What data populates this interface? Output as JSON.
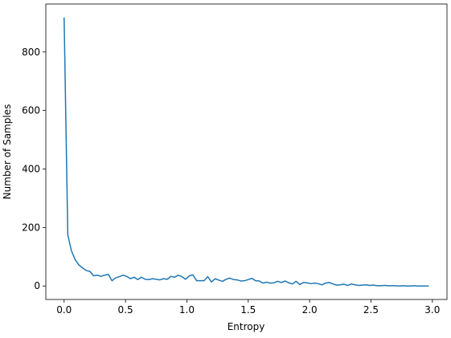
{
  "chart_data": {
    "type": "line",
    "x_label": "Entropy",
    "y_label": "Number of Samples",
    "x": [
      0,
      0.03,
      0.06,
      0.09,
      0.12,
      0.15,
      0.18,
      0.21,
      0.24,
      0.27,
      0.3,
      0.33,
      0.36,
      0.39,
      0.42,
      0.45,
      0.48,
      0.51,
      0.54,
      0.57,
      0.6,
      0.63,
      0.66,
      0.69,
      0.72,
      0.75,
      0.78,
      0.81,
      0.84,
      0.87,
      0.9,
      0.93,
      0.96,
      0.99,
      1.02,
      1.05,
      1.08,
      1.11,
      1.14,
      1.17,
      1.2,
      1.23,
      1.26,
      1.29,
      1.32,
      1.35,
      1.38,
      1.41,
      1.44,
      1.47,
      1.5,
      1.53,
      1.56,
      1.59,
      1.62,
      1.65,
      1.68,
      1.71,
      1.74,
      1.77,
      1.8,
      1.83,
      1.86,
      1.89,
      1.92,
      1.95,
      1.98,
      2.01,
      2.04,
      2.07,
      2.1,
      2.13,
      2.16,
      2.19,
      2.22,
      2.25,
      2.28,
      2.31,
      2.34,
      2.37,
      2.4,
      2.43,
      2.46,
      2.49,
      2.52,
      2.55,
      2.58,
      2.61,
      2.64,
      2.67,
      2.7,
      2.73,
      2.76,
      2.79,
      2.82,
      2.85,
      2.88,
      2.91,
      2.94,
      2.97
    ],
    "series": [
      {
        "name": "samples",
        "color": "#1f77b4",
        "values": [
          918,
          175,
          120,
          90,
          72,
          62,
          53,
          50,
          35,
          37,
          33,
          37,
          40,
          18,
          28,
          32,
          37,
          33,
          25,
          30,
          22,
          30,
          23,
          22,
          25,
          23,
          21,
          25,
          23,
          33,
          30,
          37,
          32,
          23,
          35,
          38,
          18,
          18,
          18,
          32,
          14,
          25,
          20,
          16,
          23,
          27,
          22,
          21,
          17,
          18,
          22,
          26,
          18,
          17,
          10,
          13,
          10,
          11,
          16,
          12,
          17,
          11,
          7,
          16,
          5,
          12,
          11,
          8,
          10,
          8,
          4,
          10,
          12,
          7,
          3,
          4,
          6,
          2,
          7,
          4,
          2,
          3,
          4,
          2,
          3,
          1,
          1,
          2,
          1,
          1,
          1,
          0,
          1,
          0,
          0,
          1,
          0,
          0,
          0,
          0
        ]
      }
    ],
    "xlim": [
      -0.149,
      3.119
    ],
    "ylim": [
      -46,
      964
    ],
    "xticks": [
      {
        "value": 0,
        "label": "0.0"
      },
      {
        "value": 0.5,
        "label": "0.5"
      },
      {
        "value": 1,
        "label": "1.0"
      },
      {
        "value": 1.5,
        "label": "1.5"
      },
      {
        "value": 2,
        "label": "2.0"
      },
      {
        "value": 2.5,
        "label": "2.5"
      },
      {
        "value": 3,
        "label": "3.0"
      }
    ],
    "yticks": [
      0,
      200,
      400,
      600,
      800
    ]
  }
}
